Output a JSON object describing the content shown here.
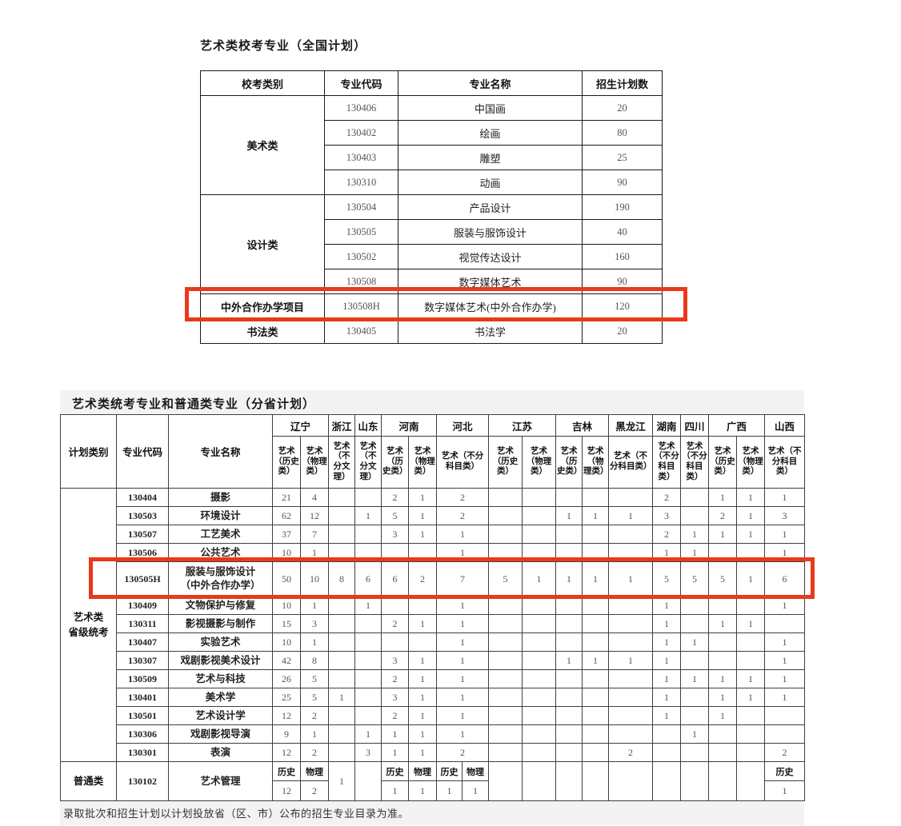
{
  "accent_red": "#e8391d",
  "top_table": {
    "title": "艺术类校考专业（全国计划）",
    "headers": [
      "校考类别",
      "专业代码",
      "专业名称",
      "招生计划数"
    ],
    "groups": [
      {
        "category": "美术类",
        "highlight": false,
        "rows": [
          {
            "code": "130406",
            "name": "中国画",
            "count": "20"
          },
          {
            "code": "130402",
            "name": "绘画",
            "count": "80"
          },
          {
            "code": "130403",
            "name": "雕塑",
            "count": "25"
          },
          {
            "code": "130310",
            "name": "动画",
            "count": "90"
          }
        ]
      },
      {
        "category": "设计类",
        "highlight": false,
        "rows": [
          {
            "code": "130504",
            "name": "产品设计",
            "count": "190"
          },
          {
            "code": "130505",
            "name": "服装与服饰设计",
            "count": "40"
          },
          {
            "code": "130502",
            "name": "视觉传达设计",
            "count": "160"
          },
          {
            "code": "130508",
            "name": "数字媒体艺术",
            "count": "90"
          }
        ]
      },
      {
        "category": "中外合作办学项目",
        "highlight": true,
        "rows": [
          {
            "code": "130508H",
            "name": "数字媒体艺术(中外合作办学)",
            "count": "120"
          }
        ]
      },
      {
        "category": "书法类",
        "highlight": false,
        "rows": [
          {
            "code": "130405",
            "name": "书法学",
            "count": "20"
          }
        ]
      }
    ]
  },
  "bottom_table": {
    "title": "艺术类统考专业和普通类专业（分省计划）",
    "corner_headers": [
      "计划类别",
      "专业代码",
      "专业名称"
    ],
    "provinces": [
      {
        "name": "辽宁",
        "cols": 2,
        "subjects": [
          {
            "label": "艺术（历史类）",
            "span": 1
          },
          {
            "label": "艺术（物理类）",
            "span": 1
          }
        ]
      },
      {
        "name": "浙江",
        "cols": 1,
        "subjects": [
          {
            "label": "艺术（不分文理）",
            "span": 1
          }
        ]
      },
      {
        "name": "山东",
        "cols": 1,
        "subjects": [
          {
            "label": "艺术（不分文理）",
            "span": 1
          }
        ]
      },
      {
        "name": "河南",
        "cols": 2,
        "subjects": [
          {
            "label": "艺术（历史类）",
            "span": 1
          },
          {
            "label": "艺术（物理类）",
            "span": 1
          }
        ]
      },
      {
        "name": "河北",
        "cols": 2,
        "subjects": [
          {
            "label": "艺术（不分科目类）",
            "span": 2
          }
        ]
      },
      {
        "name": "江苏",
        "cols": 2,
        "subjects": [
          {
            "label": "艺术（历史类）",
            "span": 1
          },
          {
            "label": "艺术（物理类）",
            "span": 1
          }
        ]
      },
      {
        "name": "吉林",
        "cols": 2,
        "subjects": [
          {
            "label": "艺术（历史类）",
            "span": 1
          },
          {
            "label": "艺术（物理类）",
            "span": 1
          }
        ]
      },
      {
        "name": "黑龙江",
        "cols": 1,
        "subjects": [
          {
            "label": "艺术（不分科目类）",
            "span": 1
          }
        ]
      },
      {
        "name": "湖南",
        "cols": 1,
        "subjects": [
          {
            "label": "艺术（不分科目类）",
            "span": 1
          }
        ]
      },
      {
        "name": "四川",
        "cols": 1,
        "subjects": [
          {
            "label": "艺术（不分科目类）",
            "span": 1
          }
        ]
      },
      {
        "name": "广西",
        "cols": 2,
        "subjects": [
          {
            "label": "艺术（历史类）",
            "span": 1
          },
          {
            "label": "艺术（物理类）",
            "span": 1
          }
        ]
      },
      {
        "name": "山西",
        "cols": 1,
        "subjects": [
          {
            "label": "艺术（不分科目类）",
            "span": 1
          }
        ]
      }
    ],
    "art_group_label": [
      "艺术类",
      "省级统考"
    ],
    "art_rows": [
      {
        "code": "130404",
        "name": [
          "摄影"
        ],
        "highlight": false,
        "values": [
          "21",
          "4",
          "",
          "",
          "2",
          "1",
          "2",
          "",
          "",
          "",
          "",
          "",
          "2",
          "",
          "1",
          "1",
          "1"
        ]
      },
      {
        "code": "130503",
        "name": [
          "环境设计"
        ],
        "highlight": false,
        "values": [
          "62",
          "12",
          "",
          "1",
          "5",
          "1",
          "2",
          "",
          "",
          "1",
          "1",
          "1",
          "3",
          "",
          "2",
          "1",
          "3"
        ]
      },
      {
        "code": "130507",
        "name": [
          "工艺美术"
        ],
        "highlight": false,
        "values": [
          "37",
          "7",
          "",
          "",
          "3",
          "1",
          "1",
          "",
          "",
          "",
          "",
          "",
          "2",
          "1",
          "1",
          "1",
          "1"
        ]
      },
      {
        "code": "130506",
        "name": [
          "公共艺术"
        ],
        "highlight": false,
        "values": [
          "10",
          "1",
          "",
          "",
          "",
          "",
          "1",
          "",
          "",
          "",
          "",
          "",
          "1",
          "1",
          "",
          "",
          "1"
        ]
      },
      {
        "code": "130505H",
        "name": [
          "服装与服饰设计",
          "（中外合作办学）"
        ],
        "highlight": true,
        "values": [
          "50",
          "10",
          "8",
          "6",
          "6",
          "2",
          "7",
          "5",
          "1",
          "1",
          "1",
          "1",
          "5",
          "5",
          "5",
          "1",
          "6"
        ]
      },
      {
        "code": "130409",
        "name": [
          "文物保护与修复"
        ],
        "highlight": false,
        "values": [
          "10",
          "1",
          "",
          "1",
          "",
          "",
          "1",
          "",
          "",
          "",
          "",
          "",
          "1",
          "",
          "",
          "",
          "1"
        ]
      },
      {
        "code": "130311",
        "name": [
          "影视摄影与制作"
        ],
        "highlight": false,
        "values": [
          "15",
          "3",
          "",
          "",
          "2",
          "1",
          "1",
          "",
          "",
          "",
          "",
          "",
          "1",
          "",
          "1",
          "1",
          ""
        ]
      },
      {
        "code": "130407",
        "name": [
          "实验艺术"
        ],
        "highlight": false,
        "values": [
          "10",
          "1",
          "",
          "",
          "",
          "",
          "1",
          "",
          "",
          "",
          "",
          "",
          "1",
          "1",
          "",
          "",
          "1"
        ]
      },
      {
        "code": "130307",
        "name": [
          "戏剧影视美术设计"
        ],
        "highlight": false,
        "values": [
          "42",
          "8",
          "",
          "",
          "3",
          "1",
          "1",
          "",
          "",
          "1",
          "1",
          "1",
          "1",
          "",
          "",
          "",
          "1"
        ]
      },
      {
        "code": "130509",
        "name": [
          "艺术与科技"
        ],
        "highlight": false,
        "values": [
          "26",
          "5",
          "",
          "",
          "2",
          "1",
          "1",
          "",
          "",
          "",
          "",
          "",
          "1",
          "1",
          "1",
          "1",
          "1"
        ]
      },
      {
        "code": "130401",
        "name": [
          "美术学"
        ],
        "highlight": false,
        "values": [
          "25",
          "5",
          "1",
          "",
          "3",
          "1",
          "1",
          "",
          "",
          "",
          "",
          "",
          "1",
          "",
          "1",
          "1",
          "1"
        ]
      },
      {
        "code": "130501",
        "name": [
          "艺术设计学"
        ],
        "highlight": false,
        "values": [
          "12",
          "2",
          "",
          "",
          "2",
          "1",
          "1",
          "",
          "",
          "",
          "",
          "",
          "1",
          "",
          "1",
          "",
          ""
        ]
      },
      {
        "code": "130306",
        "name": [
          "戏剧影视导演"
        ],
        "highlight": false,
        "values": [
          "9",
          "1",
          "",
          "1",
          "1",
          "1",
          "1",
          "",
          "",
          "",
          "",
          "",
          "",
          "1",
          "",
          "",
          ""
        ]
      },
      {
        "code": "130301",
        "name": [
          "表演"
        ],
        "highlight": false,
        "values": [
          "12",
          "2",
          "",
          "3",
          "1",
          "1",
          "2",
          "",
          "",
          "",
          "",
          "2",
          "",
          "",
          "",
          "",
          "2"
        ]
      }
    ],
    "general_row": {
      "category": "普通类",
      "code": "130102",
      "name": [
        "艺术管理"
      ],
      "cells": [
        {
          "h": "历史",
          "v": "12"
        },
        {
          "h": "物理",
          "v": "2"
        },
        {
          "m": "1"
        },
        {
          "m": ""
        },
        {
          "h": "历史",
          "v": "1"
        },
        {
          "h": "物理",
          "v": "1"
        },
        {
          "h": "历史",
          "v": "1"
        },
        {
          "h": "物理",
          "v": "1"
        },
        {
          "m": ""
        },
        {
          "m": ""
        },
        {
          "m": ""
        },
        {
          "m": ""
        },
        {
          "m": ""
        },
        {
          "m": ""
        },
        {
          "m": ""
        },
        {
          "m": ""
        },
        {
          "m": ""
        },
        {
          "h": "历史",
          "v": "1"
        }
      ]
    },
    "footnote": "录取批次和招生计划以计划投放省（区、市）公布的招生专业目录为准。"
  }
}
